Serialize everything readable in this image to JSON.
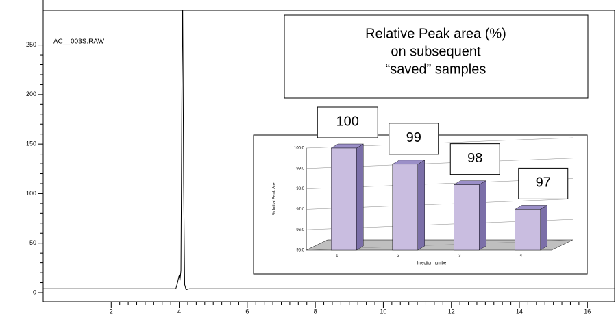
{
  "chart_data": [
    {
      "type": "line",
      "annotation": "AC__003S.RAW",
      "x": [
        0,
        3.9,
        3.95,
        4.0,
        4.02,
        4.05,
        4.08,
        4.1,
        4.13,
        4.16,
        4.2,
        4.3,
        16.8
      ],
      "values": [
        4,
        4,
        10,
        18,
        12,
        22,
        215,
        300,
        110,
        8,
        3,
        4,
        4
      ],
      "color": "#000000",
      "xlim": [
        0,
        16.8
      ],
      "ylim": [
        -9,
        285
      ],
      "xticks": [
        2,
        4,
        6,
        8,
        10,
        12,
        14,
        16
      ],
      "yticks": [
        0,
        50,
        100,
        150,
        200,
        250
      ]
    },
    {
      "type": "bar",
      "title": [
        "Relative Peak area (%)",
        "on subsequent",
        "“saved” samples"
      ],
      "categories": [
        "1",
        "2",
        "3",
        "4"
      ],
      "values": [
        100,
        99.2,
        98.2,
        97.0
      ],
      "value_labels": [
        "100",
        "99",
        "98",
        "97"
      ],
      "color": "#c9bde0",
      "ylim": [
        95,
        100
      ],
      "yticks": [
        {
          "value": 95,
          "label": "95.0"
        },
        {
          "value": 96,
          "label": "96.0"
        },
        {
          "value": 97,
          "label": "97.0"
        },
        {
          "value": 98,
          "label": "98.0"
        },
        {
          "value": 99,
          "label": "99.0"
        },
        {
          "value": 100,
          "label": "100.0"
        }
      ],
      "ylabel": "% Initial Peak Are",
      "xlabel": "Injection numbe",
      "grid": true
    }
  ]
}
